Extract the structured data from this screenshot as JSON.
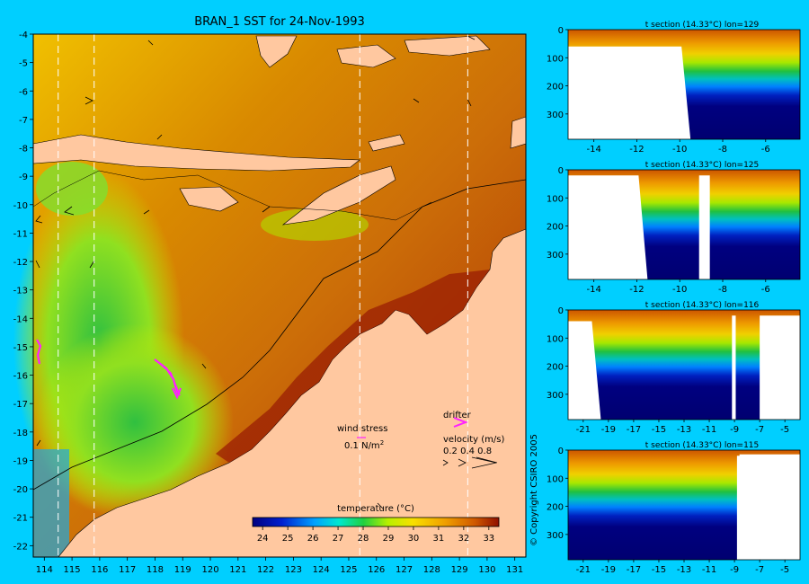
{
  "main": {
    "title": "BRAN_1 SST for 24-Nov-1993",
    "lon_ticks": [
      114,
      115,
      116,
      117,
      118,
      119,
      120,
      121,
      122,
      123,
      124,
      125,
      126,
      127,
      128,
      129,
      130,
      131
    ],
    "lat_ticks": [
      -4,
      -5,
      -6,
      -7,
      -8,
      -9,
      -10,
      -11,
      -12,
      -13,
      -14,
      -15,
      -16,
      -17,
      -18,
      -19,
      -20,
      -21,
      -22
    ],
    "section_lines_lon": [
      114.5,
      115.8,
      125.4,
      129.3
    ],
    "legend": {
      "wind_label": "wind stress",
      "wind_scale": "0.1 N/m",
      "wind_scale_sup": "2",
      "drifter_label": "drifter",
      "velocity_label": "velocity (m/s)",
      "velocity_values": "0.2 0.4 0.8"
    },
    "colorbar": {
      "title": "temperature (°C)",
      "ticks": [
        "24",
        "25",
        "26",
        "27",
        "28",
        "29",
        "30",
        "31",
        "32",
        "33"
      ],
      "min": 23.6,
      "max": 33.4
    }
  },
  "copyright": "© Copyright CSIRO 2005",
  "chart_data": [
    {
      "type": "heatmap",
      "title": "BRAN_1 SST for 24-Nov-1993",
      "xlim": [
        113.6,
        131.4
      ],
      "ylim": [
        -22.4,
        -4
      ],
      "colorbar_label": "temperature (°C)",
      "colorbar_range": [
        24,
        33
      ]
    },
    {
      "type": "heatmap",
      "title": "t section (14.33°C) lon=129",
      "x_ticks": [
        "-14",
        "-12",
        "-10",
        "-8",
        "-6"
      ],
      "y_ticks": [
        "0",
        "100",
        "200",
        "300"
      ],
      "xlim": [
        -15.2,
        -4.4
      ],
      "ylim": [
        390,
        0
      ]
    },
    {
      "type": "heatmap",
      "title": "t section (14.33°C) lon=125",
      "x_ticks": [
        "-14",
        "-12",
        "-10",
        "-8",
        "-6"
      ],
      "y_ticks": [
        "0",
        "100",
        "200",
        "300"
      ],
      "xlim": [
        -15.2,
        -4.4
      ],
      "ylim": [
        390,
        0
      ]
    },
    {
      "type": "heatmap",
      "title": "t section (14.33°C) lon=116",
      "x_ticks": [
        "-21",
        "-19",
        "-17",
        "-15",
        "-13",
        "-11",
        "-9",
        "-7",
        "-5"
      ],
      "y_ticks": [
        "0",
        "100",
        "200",
        "300"
      ],
      "xlim": [
        -22.2,
        -3.8
      ],
      "ylim": [
        390,
        0
      ]
    },
    {
      "type": "heatmap",
      "title": "t section (14.33°C) lon=115",
      "x_ticks": [
        "-21",
        "-19",
        "-17",
        "-15",
        "-13",
        "-11",
        "-9",
        "-7",
        "-5"
      ],
      "y_ticks": [
        "0",
        "100",
        "200",
        "300"
      ],
      "xlim": [
        -22.2,
        -3.8
      ],
      "ylim": [
        390,
        0
      ]
    }
  ]
}
